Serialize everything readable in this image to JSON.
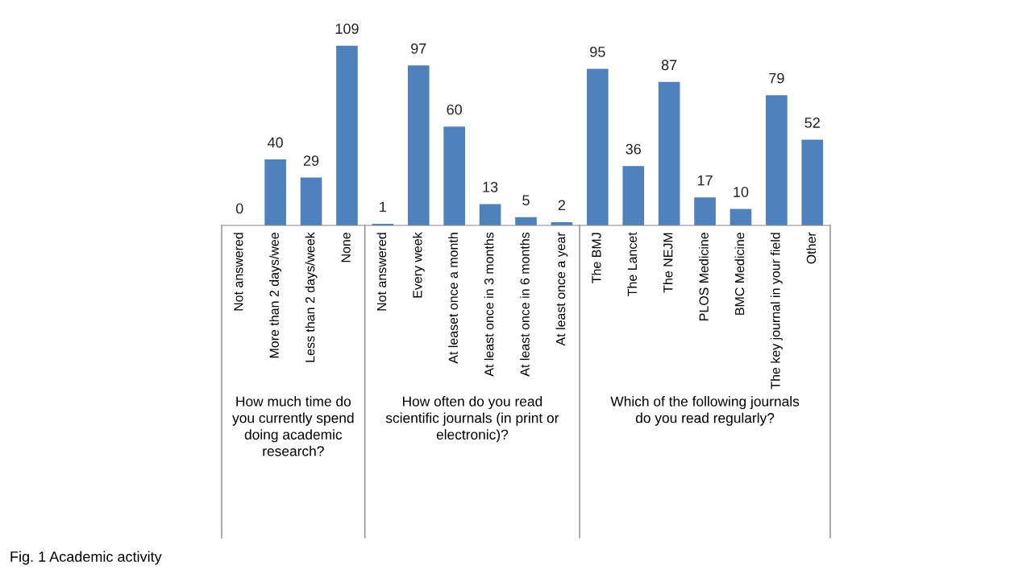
{
  "chart_data": [
    {
      "type": "bar",
      "categories": [
        "Not answered",
        "More than 2 days/wee",
        "Less than 2 days/week",
        "None"
      ],
      "values": [
        0,
        40,
        29,
        109
      ],
      "color": "#4f81bd",
      "data_labels": true,
      "tick_labels": "x",
      "xlabel": "How much time do\nyou currently spend\ndoing academic\nresearch?",
      "annotations": [
        "Fig. 1 Academic activity"
      ]
    },
    {
      "type": "bar",
      "categories": [
        "Not answered",
        "Every week",
        "At leaset once a month",
        "At least once in 3 months",
        "At least once in 6 months",
        "At least once a year"
      ],
      "values": [
        1,
        97,
        60,
        13,
        5,
        2
      ],
      "color": "#4f81bd",
      "data_labels": true,
      "tick_labels": "x",
      "xlabel": "How often do you read\nscientific journals (in print or\nelectronic)?"
    },
    {
      "type": "bar",
      "categories": [
        "The BMJ",
        "The Lancet",
        "The NEJM",
        "PLOS Medicine",
        "BMC Medicine",
        "The key journal in your field",
        "Other"
      ],
      "values": [
        95,
        36,
        87,
        17,
        10,
        79,
        52
      ],
      "color": "#4f81bd",
      "data_labels": true,
      "tick_labels": "x",
      "xlabel": "Which of the following journals\ndo you read regularly?"
    }
  ]
}
